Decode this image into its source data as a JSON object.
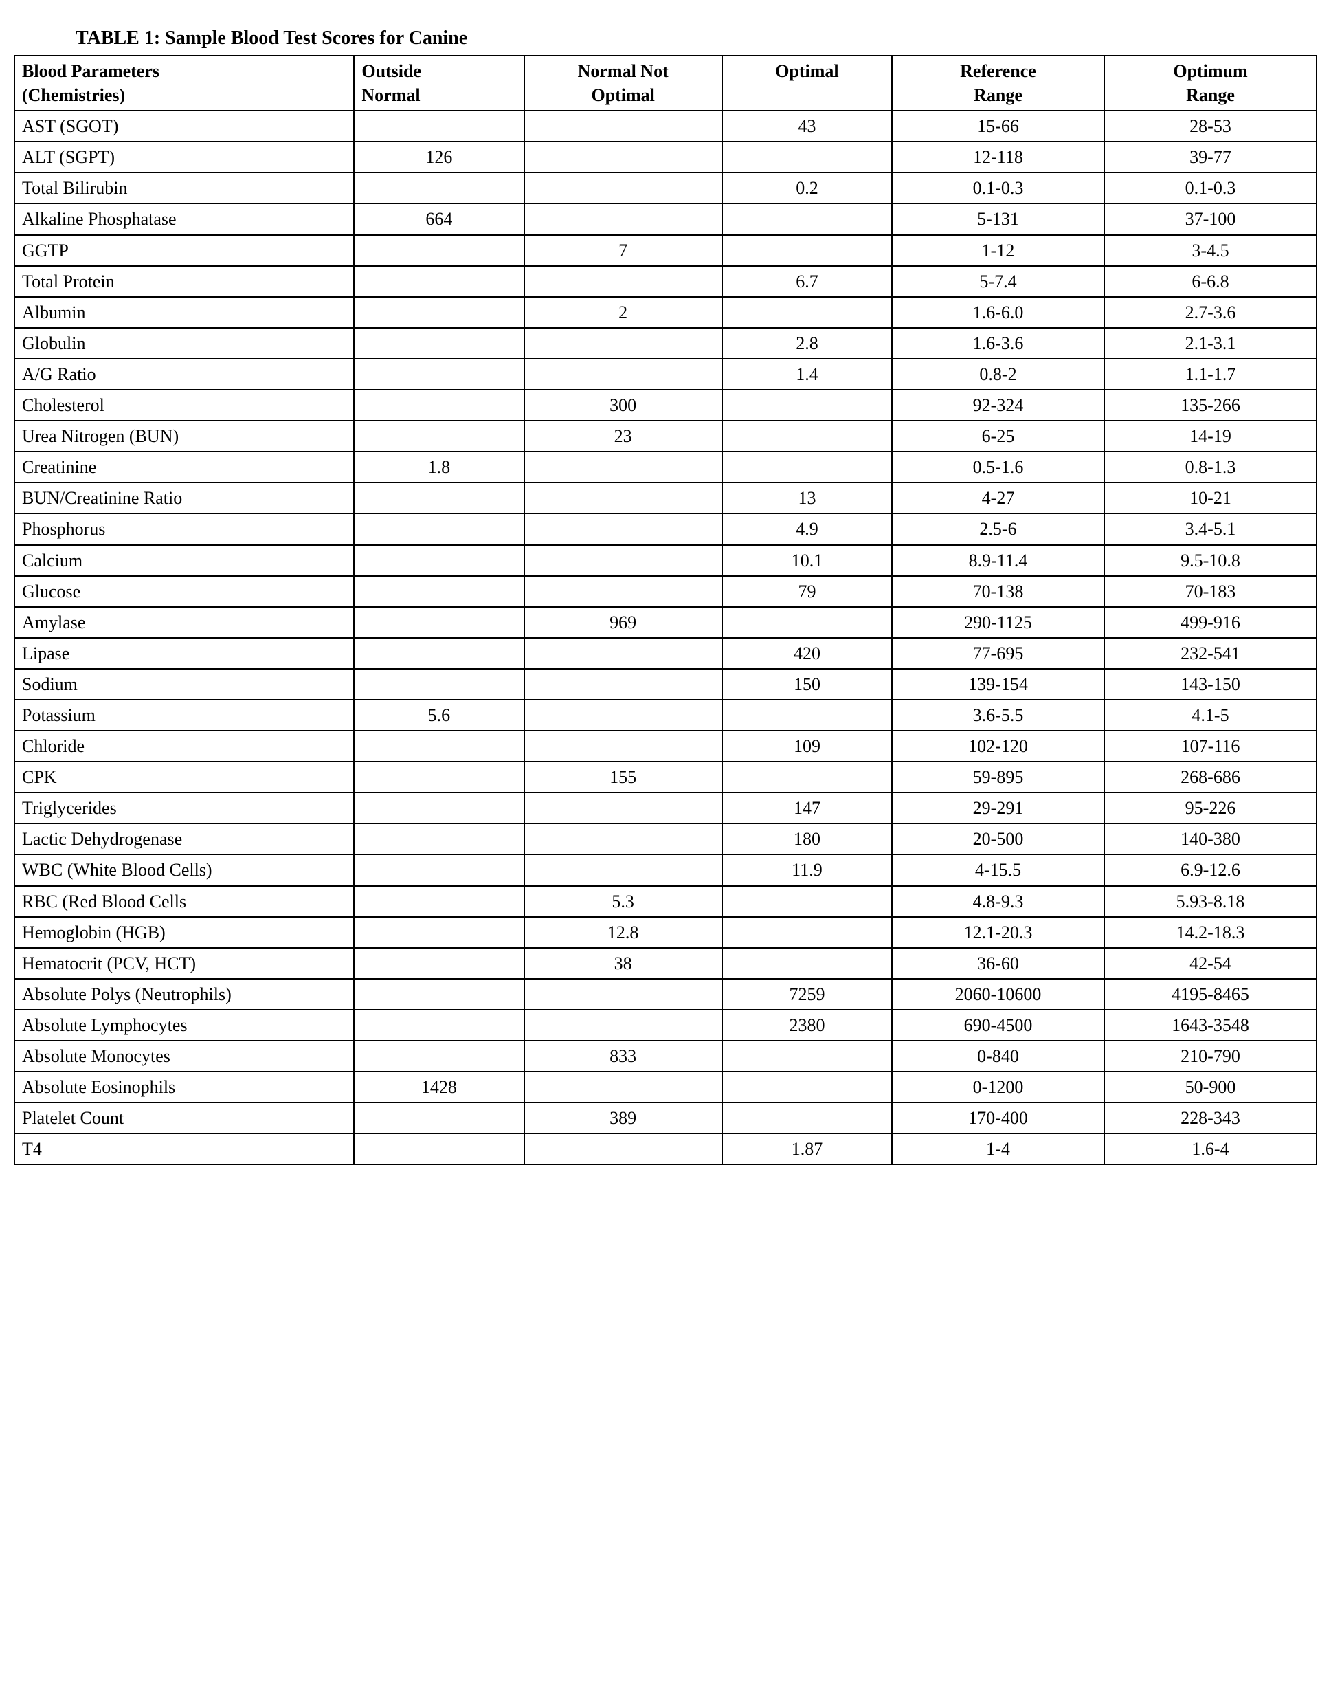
{
  "title": "TABLE 1: Sample Blood Test Scores for Canine",
  "table": {
    "columns": [
      "Blood Parameters (Chemistries)",
      "Outside Normal",
      "Normal Not Optimal",
      "Optimal",
      "Reference Range",
      "Optimum Range"
    ],
    "header_html": [
      "Blood Parameters<br>(Chemistries)",
      "Outside<br>Normal",
      "Normal Not<br>Optimal",
      "Optimal",
      "Reference<br>Range",
      "Optimum<br>Range"
    ],
    "column_align": [
      "left",
      "left",
      "center",
      "center",
      "center",
      "center"
    ],
    "border_color": "#000000",
    "background_color": "#ffffff",
    "font_family": "Times New Roman",
    "header_fontsize": 28,
    "body_fontsize": 26,
    "rows": [
      {
        "param": "AST (SGOT)",
        "outside": "",
        "normal_not": "",
        "optimal": "43",
        "reference": "15-66",
        "optimum": "28-53"
      },
      {
        "param": "ALT (SGPT)",
        "outside": "126",
        "normal_not": "",
        "optimal": "",
        "reference": "12-118",
        "optimum": "39-77"
      },
      {
        "param": "Total Bilirubin",
        "outside": "",
        "normal_not": "",
        "optimal": "0.2",
        "reference": "0.1-0.3",
        "optimum": "0.1-0.3"
      },
      {
        "param": "Alkaline Phosphatase",
        "outside": "664",
        "normal_not": "",
        "optimal": "",
        "reference": "5-131",
        "optimum": "37-100"
      },
      {
        "param": "GGTP",
        "outside": "",
        "normal_not": "7",
        "optimal": "",
        "reference": "1-12",
        "optimum": "3-4.5"
      },
      {
        "param": "Total Protein",
        "outside": "",
        "normal_not": "",
        "optimal": "6.7",
        "reference": "5-7.4",
        "optimum": "6-6.8"
      },
      {
        "param": "Albumin",
        "outside": "",
        "normal_not": "2",
        "optimal": "",
        "reference": "1.6-6.0",
        "optimum": "2.7-3.6"
      },
      {
        "param": "Globulin",
        "outside": "",
        "normal_not": "",
        "optimal": "2.8",
        "reference": "1.6-3.6",
        "optimum": "2.1-3.1"
      },
      {
        "param": "A/G Ratio",
        "outside": "",
        "normal_not": "",
        "optimal": "1.4",
        "reference": "0.8-2",
        "optimum": "1.1-1.7"
      },
      {
        "param": "Cholesterol",
        "outside": "",
        "normal_not": "300",
        "optimal": "",
        "reference": "92-324",
        "optimum": "135-266"
      },
      {
        "param": "Urea Nitrogen (BUN)",
        "outside": "",
        "normal_not": "23",
        "optimal": "",
        "reference": "6-25",
        "optimum": "14-19"
      },
      {
        "param": "Creatinine",
        "outside": "1.8",
        "normal_not": "",
        "optimal": "",
        "reference": "0.5-1.6",
        "optimum": "0.8-1.3"
      },
      {
        "param": "BUN/Creatinine Ratio",
        "outside": "",
        "normal_not": "",
        "optimal": "13",
        "reference": "4-27",
        "optimum": "10-21"
      },
      {
        "param": "Phosphorus",
        "outside": "",
        "normal_not": "",
        "optimal": "4.9",
        "reference": "2.5-6",
        "optimum": "3.4-5.1"
      },
      {
        "param": "Calcium",
        "outside": "",
        "normal_not": "",
        "optimal": "10.1",
        "reference": "8.9-11.4",
        "optimum": "9.5-10.8"
      },
      {
        "param": "Glucose",
        "outside": "",
        "normal_not": "",
        "optimal": "79",
        "reference": "70-138",
        "optimum": "70-183"
      },
      {
        "param": "Amylase",
        "outside": "",
        "normal_not": "969",
        "optimal": "",
        "reference": "290-1125",
        "optimum": "499-916"
      },
      {
        "param": "Lipase",
        "outside": "",
        "normal_not": "",
        "optimal": "420",
        "reference": "77-695",
        "optimum": "232-541"
      },
      {
        "param": "Sodium",
        "outside": "",
        "normal_not": "",
        "optimal": "150",
        "reference": "139-154",
        "optimum": "143-150"
      },
      {
        "param": "Potassium",
        "outside": "5.6",
        "normal_not": "",
        "optimal": "",
        "reference": "3.6-5.5",
        "optimum": "4.1-5"
      },
      {
        "param": "Chloride",
        "outside": "",
        "normal_not": "",
        "optimal": "109",
        "reference": "102-120",
        "optimum": "107-116"
      },
      {
        "param": "CPK",
        "outside": "",
        "normal_not": "155",
        "optimal": "",
        "reference": "59-895",
        "optimum": "268-686"
      },
      {
        "param": "Triglycerides",
        "outside": "",
        "normal_not": "",
        "optimal": "147",
        "reference": "29-291",
        "optimum": "95-226"
      },
      {
        "param": "Lactic Dehydrogenase",
        "outside": "",
        "normal_not": "",
        "optimal": "180",
        "reference": "20-500",
        "optimum": "140-380"
      },
      {
        "param": "WBC (White Blood Cells)",
        "outside": "",
        "normal_not": "",
        "optimal": "11.9",
        "reference": "4-15.5",
        "optimum": "6.9-12.6"
      },
      {
        "param": "RBC (Red Blood Cells",
        "outside": "",
        "normal_not": "5.3",
        "optimal": "",
        "reference": "4.8-9.3",
        "optimum": "5.93-8.18"
      },
      {
        "param": "Hemoglobin (HGB)",
        "outside": "",
        "normal_not": "12.8",
        "optimal": "",
        "reference": "12.1-20.3",
        "optimum": "14.2-18.3"
      },
      {
        "param": "Hematocrit (PCV, HCT)",
        "outside": "",
        "normal_not": "38",
        "optimal": "",
        "reference": "36-60",
        "optimum": "42-54"
      },
      {
        "param": "Absolute Polys (Neutrophils)",
        "outside": "",
        "normal_not": "",
        "optimal": "7259",
        "reference": "2060-10600",
        "optimum": "4195-8465"
      },
      {
        "param": "Absolute Lymphocytes",
        "outside": "",
        "normal_not": "",
        "optimal": "2380",
        "reference": "690-4500",
        "optimum": "1643-3548"
      },
      {
        "param": "Absolute Monocytes",
        "outside": "",
        "normal_not": "833",
        "optimal": "",
        "reference": "0-840",
        "optimum": "210-790"
      },
      {
        "param": "Absolute Eosinophils",
        "outside": "1428",
        "normal_not": "",
        "optimal": "",
        "reference": "0-1200",
        "optimum": "50-900"
      },
      {
        "param": "Platelet Count",
        "outside": "",
        "normal_not": "389",
        "optimal": "",
        "reference": "170-400",
        "optimum": "228-343"
      },
      {
        "param": "T4",
        "outside": "",
        "normal_not": "",
        "optimal": "1.87",
        "reference": "1-4",
        "optimum": "1.6-4"
      }
    ]
  }
}
